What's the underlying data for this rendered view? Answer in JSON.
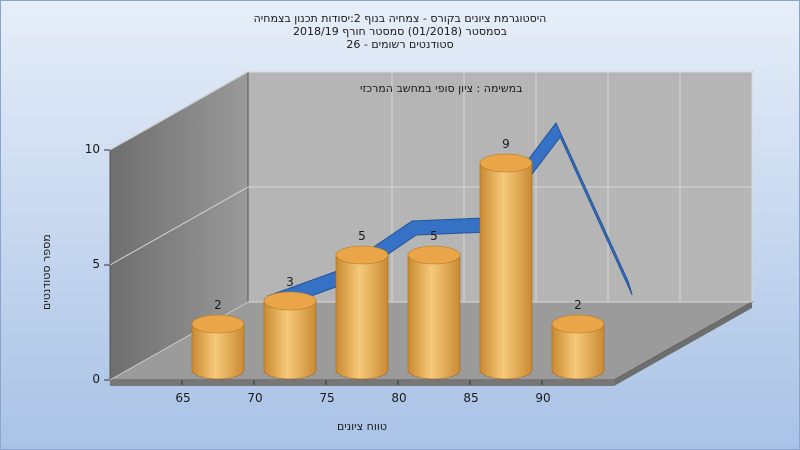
{
  "chart_data": {
    "type": "bar",
    "title_lines": [
      "היסטוגרמת ציונים בקורס - צמחיה בנוף 2:יסודות תכנון בצמחיה",
      "בסמסטר   (01/2018)  סמסטר חורף 2018/19",
      "סטודנטים רשומים - 26"
    ],
    "annotation": "במשימה : ציון סופי במחשב המרכזי",
    "xlabel": "טווח ציונים",
    "ylabel": "מספר סטודנטים",
    "x_ticks": [
      "65",
      "70",
      "75",
      "80",
      "85",
      "90"
    ],
    "y_ticks": [
      "0",
      "5",
      "10"
    ],
    "ylim": [
      0,
      10
    ],
    "values": [
      2,
      3,
      5,
      5,
      9,
      2
    ],
    "value_labels": [
      "2",
      "3",
      "5",
      "5",
      "9",
      "2"
    ],
    "line_values": [
      2.0,
      3.0,
      5.0,
      5.0,
      9.0,
      2.0
    ],
    "grid": true,
    "colors": {
      "bar_light": "#f7c97a",
      "bar_dark": "#c98a32",
      "bar_top": "#e9a548",
      "line": "#2f6fc6",
      "wall": "#b5b5b5",
      "side_wall": "#8a8a8a",
      "floor": "#9b9b9b",
      "background_top": "#e6eef8",
      "background_bottom": "#a9c2e6"
    }
  }
}
